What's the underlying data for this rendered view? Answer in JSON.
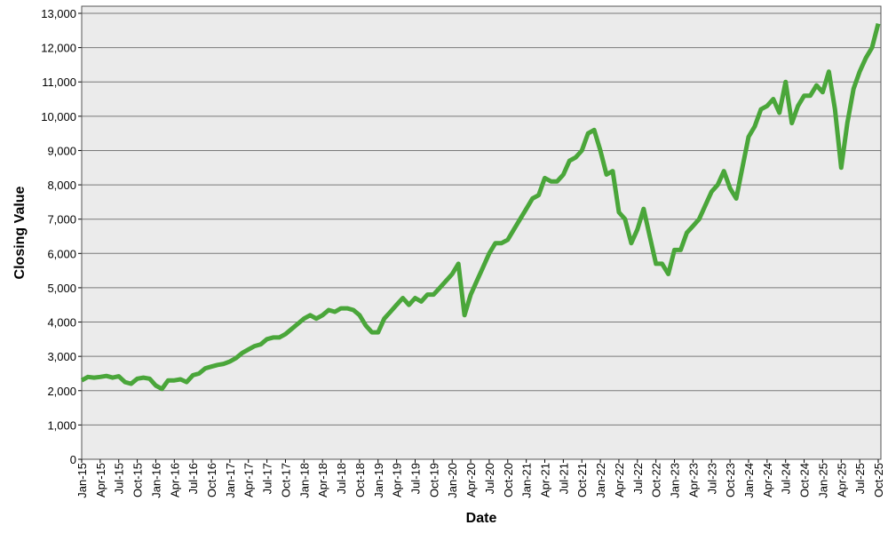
{
  "chart_data": {
    "type": "line",
    "x_label": "Date",
    "y_label": "Closing Value",
    "categories": [
      "Jan-15",
      null,
      null,
      "Apr-15",
      null,
      null,
      "Jul-15",
      null,
      null,
      "Oct-15",
      null,
      null,
      "Jan-16",
      null,
      null,
      "Apr-16",
      null,
      null,
      "Jul-16",
      null,
      null,
      "Oct-16",
      null,
      null,
      "Jan-17",
      null,
      null,
      "Apr-17",
      null,
      null,
      "Jul-17",
      null,
      null,
      "Oct-17",
      null,
      null,
      "Jan-18",
      null,
      null,
      "Apr-18",
      null,
      null,
      "Jul-18",
      null,
      null,
      "Oct-18",
      null,
      null,
      "Jan-19",
      null,
      null,
      "Apr-19",
      null,
      null,
      "Jul-19",
      null,
      null,
      "Oct-19",
      null,
      null,
      "Jan-20",
      null,
      null,
      "Apr-20",
      null,
      null,
      "Jul-20",
      null,
      null,
      "Oct-20",
      null,
      null,
      "Jan-21",
      null,
      null,
      "Apr-21",
      null,
      null,
      "Jul-21",
      null,
      null,
      "Oct-21",
      null,
      null,
      "Jan-22",
      null,
      null,
      "Apr-22",
      null,
      null,
      "Jul-22",
      null,
      null,
      "Oct-22",
      null,
      null,
      "Jan-23",
      null,
      null,
      "Apr-23",
      null,
      null,
      "Jul-23",
      null,
      null,
      "Oct-23",
      null,
      null,
      "Jan-24",
      null,
      null,
      "Apr-24",
      null,
      null,
      "Jul-24",
      null,
      null,
      "Oct-24",
      null,
      null,
      "Jan-25",
      null,
      null,
      "Apr-25",
      null,
      null,
      "Jul-25",
      null,
      null,
      "Oct-25"
    ],
    "values": [
      2300,
      2400,
      2380,
      2400,
      2430,
      2380,
      2420,
      2250,
      2200,
      2350,
      2380,
      2350,
      2150,
      2050,
      2300,
      2300,
      2330,
      2250,
      2450,
      2500,
      2650,
      2700,
      2750,
      2780,
      2850,
      2950,
      3100,
      3200,
      3300,
      3350,
      3500,
      3550,
      3550,
      3650,
      3800,
      3950,
      4100,
      4200,
      4100,
      4200,
      4350,
      4300,
      4400,
      4400,
      4350,
      4200,
      3900,
      3700,
      3700,
      4100,
      4300,
      4500,
      4700,
      4500,
      4700,
      4600,
      4800,
      4800,
      5000,
      5200,
      5400,
      5700,
      4200,
      4800,
      5200,
      5600,
      6000,
      6300,
      6300,
      6400,
      6700,
      7000,
      7300,
      7600,
      7700,
      8200,
      8100,
      8100,
      8300,
      8700,
      8800,
      9000,
      9500,
      9600,
      9000,
      8300,
      8400,
      7200,
      7000,
      6300,
      6700,
      7300,
      6500,
      5700,
      5700,
      5400,
      6100,
      6100,
      6600,
      6800,
      7000,
      7400,
      7800,
      8000,
      8400,
      7900,
      7600,
      8500,
      9400,
      9700,
      10200,
      10300,
      10500,
      10100,
      11000,
      9800,
      10300,
      10600,
      10600,
      10900,
      10700,
      11300,
      10200,
      8500,
      9800,
      10800,
      11300,
      11700,
      12000,
      12700
    ],
    "color": "#4aa63a",
    "ylim": [
      0,
      13000
    ],
    "yticks": [
      0,
      {
        "value": 1000,
        "label": "1,000"
      },
      {
        "value": 2000,
        "label": "2,000"
      },
      {
        "value": 3000,
        "label": "3,000"
      },
      {
        "value": 4000,
        "label": "4,000"
      },
      {
        "value": 5000,
        "label": "5,000"
      },
      {
        "value": 6000,
        "label": "6,000"
      },
      {
        "value": 7000,
        "label": "7,000"
      },
      {
        "value": 8000,
        "label": "8,000"
      },
      {
        "value": 9000,
        "label": "9,000"
      },
      {
        "value": 10000,
        "label": "10,000"
      },
      {
        "value": 11000,
        "label": "11,000"
      },
      {
        "value": 12000,
        "label": "12,000"
      },
      {
        "value": 13000,
        "label": "13,000"
      }
    ],
    "grid": true
  }
}
